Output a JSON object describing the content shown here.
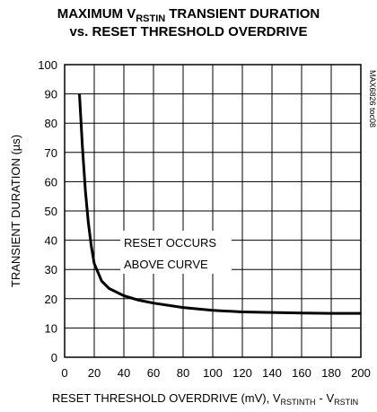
{
  "chart_data": {
    "type": "line",
    "title": [
      "MAXIMUM V",
      "RSTIN",
      "TRANSIENT DURATION",
      "vs. RESET THRESHOLD OVERDRIVE"
    ],
    "x_label": [
      "RESET THRESHOLD OVERDRIVE (mV), V",
      "RSTINTH",
      "- V",
      "RSTIN"
    ],
    "y_label": "TRANSIENT DURATION (µs)",
    "annotation": [
      "RESET OCCURS",
      "ABOVE CURVE"
    ],
    "figure_id": "MAX6826 toc08",
    "x": [
      10,
      12,
      14,
      16,
      18,
      20,
      25,
      30,
      40,
      50,
      60,
      80,
      100,
      120,
      140,
      160,
      180,
      200
    ],
    "values": [
      90,
      72,
      57,
      46,
      38,
      32,
      26,
      23.5,
      21,
      19.5,
      18.5,
      17,
      16,
      15.5,
      15.3,
      15.1,
      15,
      15
    ],
    "color": "#000000",
    "xlim": [
      0,
      200
    ],
    "ylim": [
      0,
      100
    ],
    "xticks": [
      0,
      20,
      40,
      60,
      80,
      100,
      120,
      140,
      160,
      180,
      200
    ],
    "yticks": [
      0,
      10,
      20,
      30,
      40,
      50,
      60,
      70,
      80,
      90,
      100
    ],
    "grid": true
  }
}
